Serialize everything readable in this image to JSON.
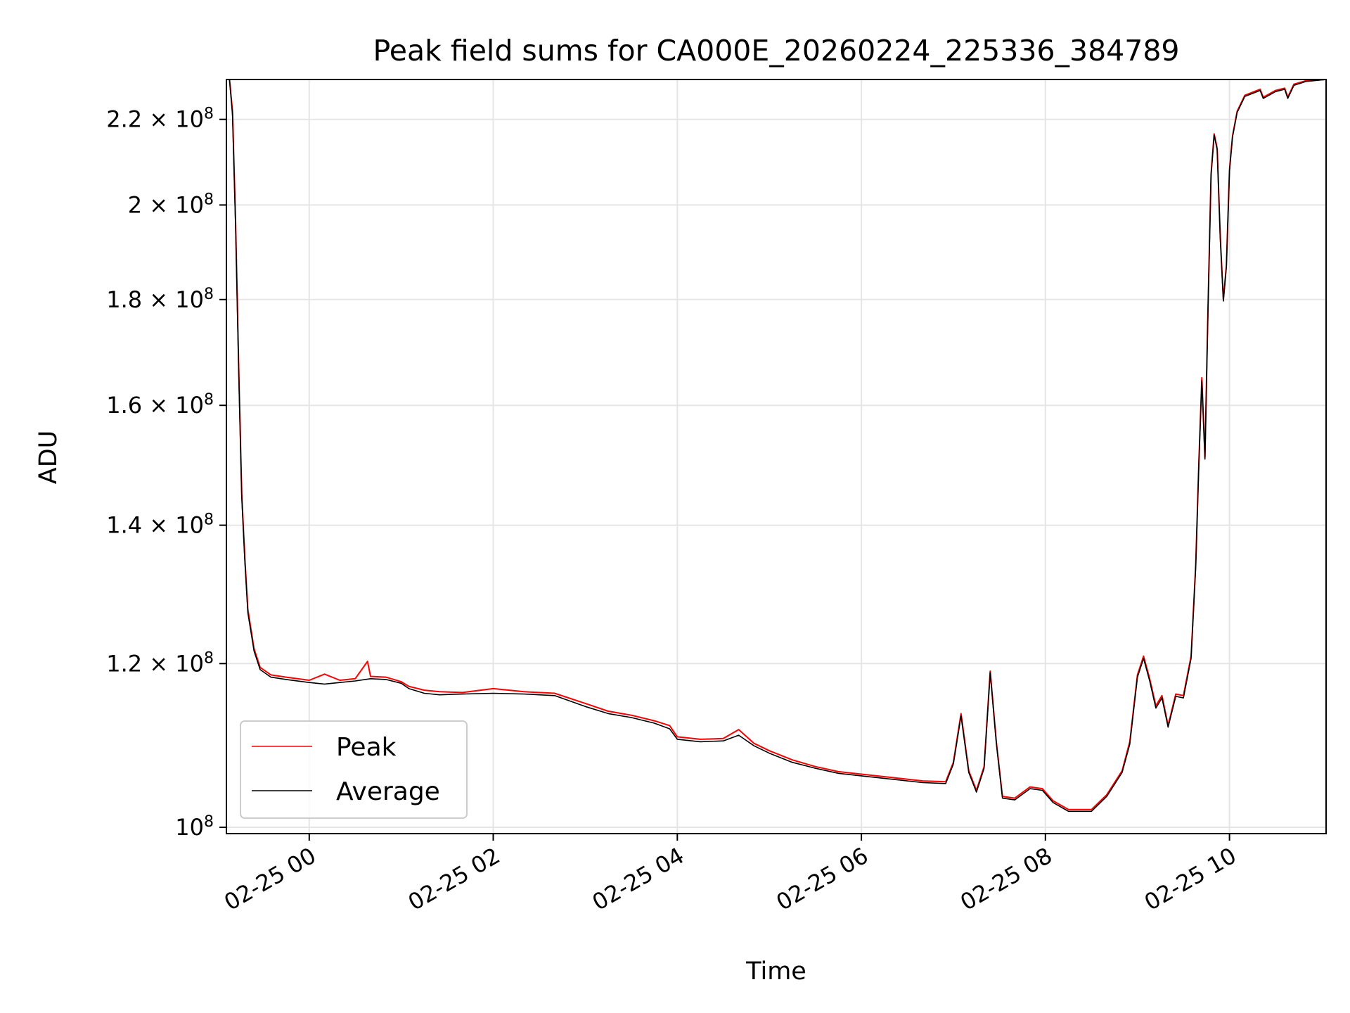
{
  "chart_data": {
    "type": "line",
    "title": "Peak field sums for CA000E_20260224_225336_384789",
    "xlabel": "Time",
    "ylabel": "ADU",
    "y_scale": "log",
    "xlim": [
      "2026-02-24 23:06",
      "2026-02-25 11:03"
    ],
    "ylim": [
      99300000,
      230000000
    ],
    "grid": true,
    "legend": {
      "placement": "lower-left"
    },
    "x_ticks": [
      {
        "t": "2026-02-25 00:00",
        "label": "02-25 00"
      },
      {
        "t": "2026-02-25 02:00",
        "label": "02-25 02"
      },
      {
        "t": "2026-02-25 04:00",
        "label": "02-25 04"
      },
      {
        "t": "2026-02-25 06:00",
        "label": "02-25 06"
      },
      {
        "t": "2026-02-25 08:00",
        "label": "02-25 08"
      },
      {
        "t": "2026-02-25 10:00",
        "label": "02-25 10"
      }
    ],
    "y_ticks": [
      {
        "v": 100000000,
        "mantissa": "",
        "exp": "8"
      },
      {
        "v": 120000000,
        "mantissa": "1.2",
        "exp": "8"
      },
      {
        "v": 140000000,
        "mantissa": "1.4",
        "exp": "8"
      },
      {
        "v": 160000000,
        "mantissa": "1.6",
        "exp": "8"
      },
      {
        "v": 180000000,
        "mantissa": "1.8",
        "exp": "8"
      },
      {
        "v": 200000000,
        "mantissa": "2",
        "exp": "8"
      },
      {
        "v": 220000000,
        "mantissa": "2.2",
        "exp": "8"
      }
    ],
    "series": [
      {
        "name": "Peak",
        "color": "#ff0000",
        "points": [
          [
            "2026-02-24 23:06",
            230000000
          ],
          [
            "2026-02-24 23:08",
            230000000
          ],
          [
            "2026-02-24 23:10",
            222000000
          ],
          [
            "2026-02-24 23:12",
            196000000
          ],
          [
            "2026-02-24 23:14",
            167000000
          ],
          [
            "2026-02-24 23:16",
            145000000
          ],
          [
            "2026-02-24 23:18",
            135000000
          ],
          [
            "2026-02-24 23:20",
            127500000
          ],
          [
            "2026-02-24 23:24",
            122000000
          ],
          [
            "2026-02-24 23:28",
            119500000
          ],
          [
            "2026-02-24 23:35",
            118500000
          ],
          [
            "2026-02-24 23:45",
            118200000
          ],
          [
            "2026-02-25 00:00",
            117800000
          ],
          [
            "2026-02-25 00:10",
            118600000
          ],
          [
            "2026-02-25 00:20",
            117800000
          ],
          [
            "2026-02-25 00:30",
            118000000
          ],
          [
            "2026-02-25 00:38",
            120300000
          ],
          [
            "2026-02-25 00:40",
            118300000
          ],
          [
            "2026-02-25 00:50",
            118200000
          ],
          [
            "2026-02-25 01:00",
            117600000
          ],
          [
            "2026-02-25 01:05",
            117000000
          ],
          [
            "2026-02-25 01:15",
            116500000
          ],
          [
            "2026-02-25 01:25",
            116300000
          ],
          [
            "2026-02-25 01:40",
            116200000
          ],
          [
            "2026-02-25 02:00",
            116700000
          ],
          [
            "2026-02-25 02:20",
            116300000
          ],
          [
            "2026-02-25 02:40",
            116100000
          ],
          [
            "2026-02-25 03:00",
            114800000
          ],
          [
            "2026-02-25 03:15",
            113800000
          ],
          [
            "2026-02-25 03:30",
            113300000
          ],
          [
            "2026-02-25 03:45",
            112600000
          ],
          [
            "2026-02-25 03:55",
            112000000
          ],
          [
            "2026-02-25 04:00",
            110600000
          ],
          [
            "2026-02-25 04:15",
            110300000
          ],
          [
            "2026-02-25 04:30",
            110400000
          ],
          [
            "2026-02-25 04:40",
            111500000
          ],
          [
            "2026-02-25 04:50",
            109800000
          ],
          [
            "2026-02-25 05:00",
            108900000
          ],
          [
            "2026-02-25 05:15",
            107800000
          ],
          [
            "2026-02-25 05:30",
            107000000
          ],
          [
            "2026-02-25 05:45",
            106400000
          ],
          [
            "2026-02-25 06:00",
            106100000
          ],
          [
            "2026-02-25 06:20",
            105700000
          ],
          [
            "2026-02-25 06:40",
            105300000
          ],
          [
            "2026-02-25 06:55",
            105200000
          ],
          [
            "2026-02-25 07:00",
            107500000
          ],
          [
            "2026-02-25 07:05",
            113500000
          ],
          [
            "2026-02-25 07:10",
            106500000
          ],
          [
            "2026-02-25 07:15",
            104200000
          ],
          [
            "2026-02-25 07:20",
            107000000
          ],
          [
            "2026-02-25 07:24",
            119000000
          ],
          [
            "2026-02-25 07:28",
            110000000
          ],
          [
            "2026-02-25 07:32",
            103500000
          ],
          [
            "2026-02-25 07:40",
            103300000
          ],
          [
            "2026-02-25 07:50",
            104600000
          ],
          [
            "2026-02-25 07:58",
            104400000
          ],
          [
            "2026-02-25 08:05",
            103000000
          ],
          [
            "2026-02-25 08:15",
            102000000
          ],
          [
            "2026-02-25 08:30",
            102000000
          ],
          [
            "2026-02-25 08:40",
            103700000
          ],
          [
            "2026-02-25 08:50",
            106500000
          ],
          [
            "2026-02-25 08:55",
            110000000
          ],
          [
            "2026-02-25 09:00",
            118500000
          ],
          [
            "2026-02-25 09:04",
            121000000
          ],
          [
            "2026-02-25 09:08",
            118000000
          ],
          [
            "2026-02-25 09:12",
            114500000
          ],
          [
            "2026-02-25 09:16",
            115800000
          ],
          [
            "2026-02-25 09:20",
            112000000
          ],
          [
            "2026-02-25 09:25",
            116000000
          ],
          [
            "2026-02-25 09:30",
            115800000
          ],
          [
            "2026-02-25 09:35",
            121000000
          ],
          [
            "2026-02-25 09:38",
            134000000
          ],
          [
            "2026-02-25 09:40",
            150000000
          ],
          [
            "2026-02-25 09:42",
            165000000
          ],
          [
            "2026-02-25 09:44",
            151000000
          ],
          [
            "2026-02-25 09:46",
            178000000
          ],
          [
            "2026-02-25 09:48",
            207000000
          ],
          [
            "2026-02-25 09:50",
            216500000
          ],
          [
            "2026-02-25 09:52",
            213000000
          ],
          [
            "2026-02-25 09:54",
            193000000
          ],
          [
            "2026-02-25 09:56",
            180000000
          ],
          [
            "2026-02-25 09:58",
            187000000
          ],
          [
            "2026-02-25 10:00",
            208000000
          ],
          [
            "2026-02-25 10:02",
            216000000
          ],
          [
            "2026-02-25 10:05",
            222000000
          ],
          [
            "2026-02-25 10:10",
            226000000
          ],
          [
            "2026-02-25 10:20",
            227500000
          ],
          [
            "2026-02-25 10:22",
            225500000
          ],
          [
            "2026-02-25 10:30",
            227200000
          ],
          [
            "2026-02-25 10:36",
            227800000
          ],
          [
            "2026-02-25 10:38",
            225500000
          ],
          [
            "2026-02-25 10:42",
            228800000
          ],
          [
            "2026-02-25 10:50",
            229700000
          ],
          [
            "2026-02-25 11:03",
            230000000
          ]
        ]
      },
      {
        "name": "Average",
        "color": "#000000",
        "points": [
          [
            "2026-02-24 23:06",
            230000000
          ],
          [
            "2026-02-24 23:08",
            230000000
          ],
          [
            "2026-02-24 23:10",
            221000000
          ],
          [
            "2026-02-24 23:12",
            195000000
          ],
          [
            "2026-02-24 23:14",
            166000000
          ],
          [
            "2026-02-24 23:16",
            144500000
          ],
          [
            "2026-02-24 23:18",
            134500000
          ],
          [
            "2026-02-24 23:20",
            127000000
          ],
          [
            "2026-02-24 23:24",
            121700000
          ],
          [
            "2026-02-24 23:28",
            119200000
          ],
          [
            "2026-02-24 23:35",
            118200000
          ],
          [
            "2026-02-24 23:45",
            117900000
          ],
          [
            "2026-02-25 00:00",
            117500000
          ],
          [
            "2026-02-25 00:10",
            117300000
          ],
          [
            "2026-02-25 00:20",
            117500000
          ],
          [
            "2026-02-25 00:30",
            117700000
          ],
          [
            "2026-02-25 00:40",
            118000000
          ],
          [
            "2026-02-25 00:50",
            117900000
          ],
          [
            "2026-02-25 01:00",
            117400000
          ],
          [
            "2026-02-25 01:05",
            116700000
          ],
          [
            "2026-02-25 01:15",
            116100000
          ],
          [
            "2026-02-25 01:25",
            115900000
          ],
          [
            "2026-02-25 01:40",
            116000000
          ],
          [
            "2026-02-25 02:00",
            116100000
          ],
          [
            "2026-02-25 02:20",
            116000000
          ],
          [
            "2026-02-25 02:40",
            115800000
          ],
          [
            "2026-02-25 03:00",
            114400000
          ],
          [
            "2026-02-25 03:15",
            113500000
          ],
          [
            "2026-02-25 03:30",
            113000000
          ],
          [
            "2026-02-25 03:45",
            112300000
          ],
          [
            "2026-02-25 03:55",
            111600000
          ],
          [
            "2026-02-25 04:00",
            110300000
          ],
          [
            "2026-02-25 04:15",
            110000000
          ],
          [
            "2026-02-25 04:30",
            110100000
          ],
          [
            "2026-02-25 04:40",
            110800000
          ],
          [
            "2026-02-25 04:50",
            109500000
          ],
          [
            "2026-02-25 05:00",
            108600000
          ],
          [
            "2026-02-25 05:15",
            107500000
          ],
          [
            "2026-02-25 05:30",
            106800000
          ],
          [
            "2026-02-25 05:45",
            106200000
          ],
          [
            "2026-02-25 06:00",
            105900000
          ],
          [
            "2026-02-25 06:20",
            105500000
          ],
          [
            "2026-02-25 06:40",
            105100000
          ],
          [
            "2026-02-25 06:55",
            105000000
          ],
          [
            "2026-02-25 07:00",
            107300000
          ],
          [
            "2026-02-25 07:05",
            113200000
          ],
          [
            "2026-02-25 07:10",
            106300000
          ],
          [
            "2026-02-25 07:15",
            104000000
          ],
          [
            "2026-02-25 07:20",
            106800000
          ],
          [
            "2026-02-25 07:24",
            118800000
          ],
          [
            "2026-02-25 07:28",
            109800000
          ],
          [
            "2026-02-25 07:32",
            103300000
          ],
          [
            "2026-02-25 07:40",
            103100000
          ],
          [
            "2026-02-25 07:50",
            104400000
          ],
          [
            "2026-02-25 07:58",
            104200000
          ],
          [
            "2026-02-25 08:05",
            102800000
          ],
          [
            "2026-02-25 08:15",
            101800000
          ],
          [
            "2026-02-25 08:30",
            101800000
          ],
          [
            "2026-02-25 08:40",
            103500000
          ],
          [
            "2026-02-25 08:50",
            106300000
          ],
          [
            "2026-02-25 08:55",
            109700000
          ],
          [
            "2026-02-25 09:00",
            118200000
          ],
          [
            "2026-02-25 09:04",
            120700000
          ],
          [
            "2026-02-25 09:08",
            117700000
          ],
          [
            "2026-02-25 09:12",
            114200000
          ],
          [
            "2026-02-25 09:16",
            115500000
          ],
          [
            "2026-02-25 09:20",
            111800000
          ],
          [
            "2026-02-25 09:25",
            115700000
          ],
          [
            "2026-02-25 09:30",
            115500000
          ],
          [
            "2026-02-25 09:35",
            120700000
          ],
          [
            "2026-02-25 09:38",
            133700000
          ],
          [
            "2026-02-25 09:40",
            149700000
          ],
          [
            "2026-02-25 09:42",
            164500000
          ],
          [
            "2026-02-25 09:44",
            150700000
          ],
          [
            "2026-02-25 09:46",
            177700000
          ],
          [
            "2026-02-25 09:48",
            206700000
          ],
          [
            "2026-02-25 09:50",
            216200000
          ],
          [
            "2026-02-25 09:52",
            212700000
          ],
          [
            "2026-02-25 09:54",
            192700000
          ],
          [
            "2026-02-25 09:56",
            179700000
          ],
          [
            "2026-02-25 09:58",
            186700000
          ],
          [
            "2026-02-25 10:00",
            207700000
          ],
          [
            "2026-02-25 10:02",
            215700000
          ],
          [
            "2026-02-25 10:05",
            221700000
          ],
          [
            "2026-02-25 10:10",
            225700000
          ],
          [
            "2026-02-25 10:20",
            227200000
          ],
          [
            "2026-02-25 10:22",
            225200000
          ],
          [
            "2026-02-25 10:30",
            226900000
          ],
          [
            "2026-02-25 10:36",
            227500000
          ],
          [
            "2026-02-25 10:38",
            225200000
          ],
          [
            "2026-02-25 10:42",
            228500000
          ],
          [
            "2026-02-25 10:50",
            229500000
          ],
          [
            "2026-02-25 11:03",
            230000000
          ]
        ]
      }
    ]
  }
}
